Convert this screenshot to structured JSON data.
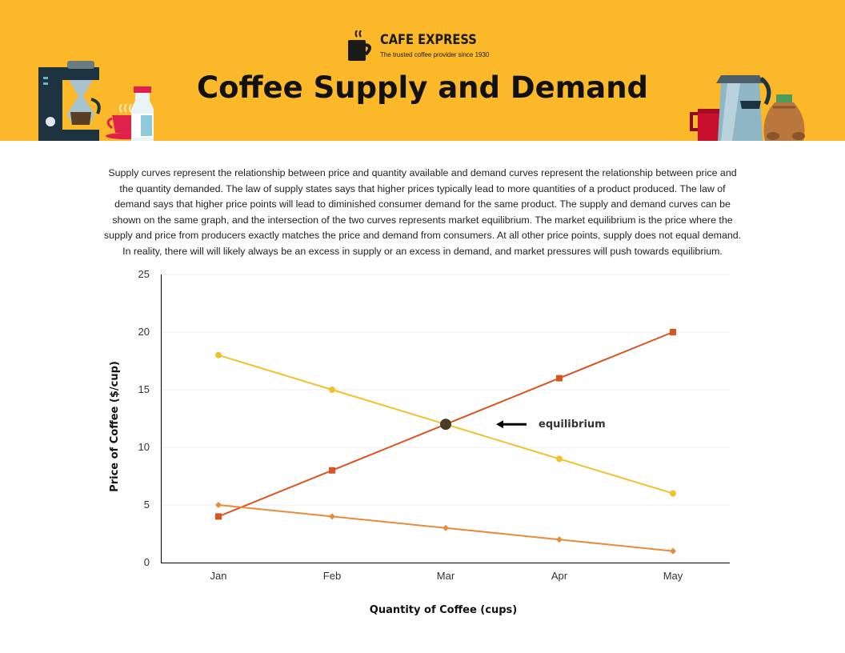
{
  "brand": {
    "name": "CAFE EXPRESS",
    "tagline": "The trusted coffee provider since 1930"
  },
  "header": {
    "title": "Coffee Supply and Demand"
  },
  "description": "Supply curves represent the relationship between price and quantity available and demand curves represent the relationship between price and the quantity demanded. The law of supply states says that higher prices typically lead to more quantities of a product produced. The law of demand says that higher price points will lead to diminished consumer demand for the same product. The supply and demand curves can be shown on the same graph, and the intersection of the two curves represents market equilibrium. The market equilibrium is the price where the supply and price from producers exactly matches the price and demand from consumers. At all other price points, supply does not equal demand. In reality, there will will likely always be an excess in supply or an excess in demand, and market pressures will push towards equilibrium.",
  "colors": {
    "banner": "#fbb829",
    "series_yellow": "#f2c12e",
    "series_red": "#d9541e",
    "series_orange": "#e98b3a",
    "equilibrium_marker": "#4a3b24"
  },
  "icons": {
    "brand": "coffee-cup-icon",
    "left_decor": [
      "coffee-maker-icon",
      "teacup-icon",
      "milk-bottle-icon"
    ],
    "right_decor": [
      "red-mug-icon",
      "coffee-kettle-icon",
      "coffee-bean-sack-icon"
    ],
    "annotation": "arrow-left-icon"
  },
  "chart_data": {
    "type": "line",
    "categories": [
      "Jan",
      "Feb",
      "Mar",
      "Apr",
      "May"
    ],
    "series": [
      {
        "name": "",
        "color": "#f2c12e",
        "marker": "circle",
        "values": [
          18,
          15,
          12,
          9,
          6
        ]
      },
      {
        "name": "",
        "color": "#d9541e",
        "marker": "square",
        "values": [
          4,
          8,
          12,
          16,
          20
        ]
      },
      {
        "name": "",
        "color": "#e98b3a",
        "marker": "diamond",
        "values": [
          5,
          4,
          3,
          2,
          1
        ]
      }
    ],
    "xlabel": "Quantity of Coffee (cups)",
    "ylabel": "Price of Coffee ($/cup)",
    "ylim": [
      0,
      25
    ],
    "yticks": [
      0,
      5,
      10,
      15,
      20,
      25
    ],
    "grid": true,
    "legend": "none",
    "annotation": {
      "text": "equilibrium",
      "category": "Mar",
      "value": 12
    }
  }
}
